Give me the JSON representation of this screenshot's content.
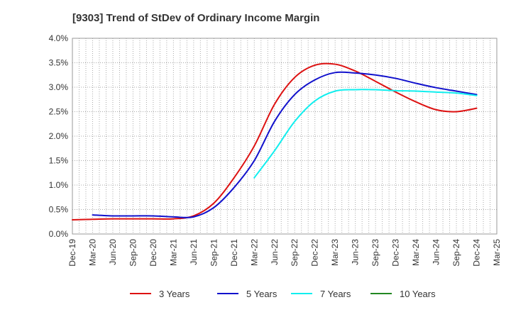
{
  "chart_data": {
    "type": "line",
    "title": "[9303]  Trend of StDev of Ordinary Income Margin",
    "xlabel": "",
    "ylabel": "",
    "ylim": [
      0,
      4.0
    ],
    "y_ticks": [
      "0.0%",
      "0.5%",
      "1.0%",
      "1.5%",
      "2.0%",
      "2.5%",
      "3.0%",
      "3.5%",
      "4.0%"
    ],
    "x_ticks": [
      "Dec-19",
      "Mar-20",
      "Jun-20",
      "Sep-20",
      "Dec-20",
      "Mar-21",
      "Jun-21",
      "Sep-21",
      "Dec-21",
      "Mar-22",
      "Jun-22",
      "Sep-22",
      "Dec-22",
      "Mar-23",
      "Jun-23",
      "Sep-23",
      "Dec-23",
      "Mar-24",
      "Jun-24",
      "Sep-24",
      "Dec-24",
      "Mar-25"
    ],
    "grid": true,
    "legend_position": "bottom",
    "series": [
      {
        "name": "3 Years",
        "color": "#dd1111",
        "points": [
          [
            0,
            0.29
          ],
          [
            1,
            0.3
          ],
          [
            2,
            0.31
          ],
          [
            3,
            0.31
          ],
          [
            4,
            0.31
          ],
          [
            5,
            0.31
          ],
          [
            6,
            0.37
          ],
          [
            7,
            0.63
          ],
          [
            8,
            1.15
          ],
          [
            9,
            1.8
          ],
          [
            10,
            2.65
          ],
          [
            11,
            3.2
          ],
          [
            12,
            3.45
          ],
          [
            13,
            3.47
          ],
          [
            14,
            3.33
          ],
          [
            15,
            3.12
          ],
          [
            16,
            2.9
          ],
          [
            17,
            2.7
          ],
          [
            18,
            2.54
          ],
          [
            19,
            2.5
          ],
          [
            20,
            2.57
          ]
        ]
      },
      {
        "name": "5 Years",
        "color": "#1111cc",
        "points": [
          [
            1,
            0.39
          ],
          [
            2,
            0.37
          ],
          [
            3,
            0.37
          ],
          [
            4,
            0.37
          ],
          [
            5,
            0.35
          ],
          [
            6,
            0.35
          ],
          [
            7,
            0.54
          ],
          [
            8,
            0.95
          ],
          [
            9,
            1.5
          ],
          [
            10,
            2.3
          ],
          [
            11,
            2.85
          ],
          [
            12,
            3.15
          ],
          [
            13,
            3.3
          ],
          [
            14,
            3.29
          ],
          [
            15,
            3.25
          ],
          [
            16,
            3.18
          ],
          [
            17,
            3.08
          ],
          [
            18,
            2.99
          ],
          [
            19,
            2.92
          ],
          [
            20,
            2.85
          ]
        ]
      },
      {
        "name": "7 Years",
        "color": "#11eeee",
        "points": [
          [
            9,
            1.15
          ],
          [
            10,
            1.7
          ],
          [
            11,
            2.3
          ],
          [
            12,
            2.72
          ],
          [
            13,
            2.92
          ],
          [
            14,
            2.95
          ],
          [
            15,
            2.95
          ],
          [
            16,
            2.93
          ],
          [
            17,
            2.92
          ],
          [
            18,
            2.9
          ],
          [
            19,
            2.88
          ],
          [
            20,
            2.83
          ]
        ]
      },
      {
        "name": "10 Years",
        "color": "#228822",
        "points": []
      }
    ]
  }
}
